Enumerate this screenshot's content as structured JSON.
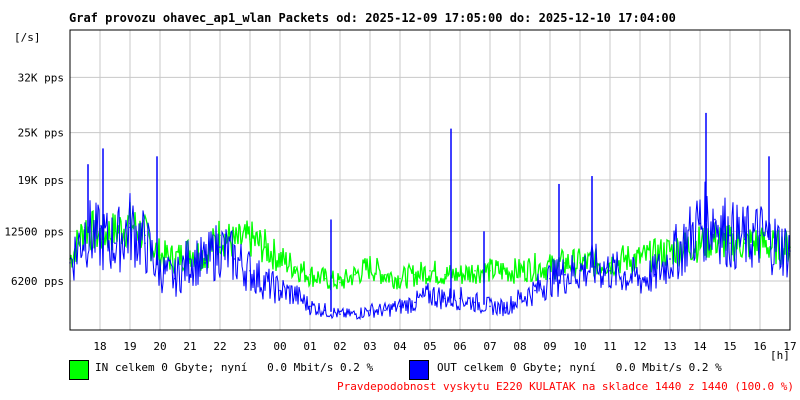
{
  "title": "Graf provozu ohavec_ap1_wlan Packets od: 2025-12-09 17:05:00 do: 2025-12-10 17:04:00",
  "chart_data": {
    "type": "line",
    "title": "Graf provozu ohavec_ap1_wlan Packets od: 2025-12-09 17:05:00 do: 2025-12-10 17:04:00",
    "ylabel": "[/s]",
    "xlabel": "[h]",
    "ylim": [
      0,
      38000
    ],
    "y_ticks": [
      {
        "value": 6200,
        "label": "6200 pps"
      },
      {
        "value": 12500,
        "label": "12500 pps"
      },
      {
        "value": 19000,
        "label": "19K pps"
      },
      {
        "value": 25000,
        "label": "25K pps"
      },
      {
        "value": 32000,
        "label": "32K pps"
      }
    ],
    "xlim": [
      17.0,
      41.0
    ],
    "x_ticks": [
      {
        "value": 18,
        "label": "18"
      },
      {
        "value": 19,
        "label": "19"
      },
      {
        "value": 20,
        "label": "20"
      },
      {
        "value": 21,
        "label": "21"
      },
      {
        "value": 22,
        "label": "22"
      },
      {
        "value": 23,
        "label": "23"
      },
      {
        "value": 24,
        "label": "00"
      },
      {
        "value": 25,
        "label": "01"
      },
      {
        "value": 26,
        "label": "02"
      },
      {
        "value": 27,
        "label": "03"
      },
      {
        "value": 28,
        "label": "04"
      },
      {
        "value": 29,
        "label": "05"
      },
      {
        "value": 30,
        "label": "06"
      },
      {
        "value": 31,
        "label": "07"
      },
      {
        "value": 32,
        "label": "08"
      },
      {
        "value": 33,
        "label": "09"
      },
      {
        "value": 34,
        "label": "10"
      },
      {
        "value": 35,
        "label": "11"
      },
      {
        "value": 36,
        "label": "12"
      },
      {
        "value": 37,
        "label": "13"
      },
      {
        "value": 38,
        "label": "14"
      },
      {
        "value": 39,
        "label": "15"
      },
      {
        "value": 40,
        "label": "16"
      },
      {
        "value": 41,
        "label": "17"
      }
    ],
    "grid": true,
    "series": [
      {
        "name": "IN",
        "color": "#00ff00",
        "x": [
          17.0,
          17.5,
          18.0,
          18.5,
          19.0,
          19.5,
          20.0,
          20.5,
          21.0,
          21.5,
          22.0,
          22.5,
          23.0,
          23.5,
          24.0,
          24.5,
          25.0,
          25.5,
          26.0,
          26.5,
          27.0,
          27.5,
          28.0,
          28.5,
          29.0,
          29.5,
          30.0,
          30.5,
          31.0,
          31.5,
          32.0,
          32.5,
          33.0,
          33.5,
          34.0,
          34.5,
          35.0,
          35.5,
          36.0,
          36.5,
          37.0,
          37.5,
          38.0,
          38.5,
          39.0,
          39.5,
          40.0,
          40.5,
          41.0
        ],
        "values": [
          9000,
          13000,
          12000,
          12500,
          13500,
          12000,
          9500,
          9000,
          10000,
          9500,
          12000,
          11000,
          11500,
          10500,
          9000,
          8000,
          7000,
          6500,
          6000,
          7000,
          8000,
          7000,
          6500,
          7000,
          7500,
          7000,
          7000,
          7500,
          7500,
          7500,
          7500,
          8000,
          8000,
          8500,
          8500,
          8500,
          8500,
          9000,
          9000,
          9500,
          10000,
          10500,
          11000,
          11500,
          11000,
          11000,
          11000,
          10500,
          10500
        ]
      },
      {
        "name": "OUT",
        "color": "#0000ff",
        "x": [
          17.0,
          17.5,
          18.0,
          18.5,
          19.0,
          19.5,
          20.0,
          20.5,
          21.0,
          21.5,
          22.0,
          22.5,
          23.0,
          23.5,
          24.0,
          24.5,
          25.0,
          25.5,
          26.0,
          26.5,
          27.0,
          27.5,
          28.0,
          28.5,
          29.0,
          29.5,
          30.0,
          30.5,
          31.0,
          31.5,
          32.0,
          32.5,
          33.0,
          33.5,
          34.0,
          34.5,
          35.0,
          35.5,
          36.0,
          36.5,
          37.0,
          37.5,
          38.0,
          38.5,
          39.0,
          39.5,
          40.0,
          40.5,
          41.0
        ],
        "values": [
          8500,
          12500,
          11500,
          11000,
          13000,
          11000,
          7500,
          6500,
          9000,
          8500,
          10500,
          9000,
          7500,
          6000,
          5000,
          4500,
          3000,
          2500,
          2000,
          2000,
          2500,
          2500,
          3000,
          3500,
          4500,
          4000,
          4000,
          3500,
          3000,
          2800,
          4000,
          5000,
          6500,
          7000,
          7500,
          8000,
          7500,
          7000,
          6500,
          7000,
          9000,
          11000,
          13500,
          14000,
          12000,
          11500,
          12000,
          11000,
          10000
        ],
        "spikes": [
          {
            "x": 17.6,
            "value": 21000
          },
          {
            "x": 18.1,
            "value": 23000
          },
          {
            "x": 19.9,
            "value": 22000
          },
          {
            "x": 25.7,
            "value": 14000
          },
          {
            "x": 29.7,
            "value": 25500
          },
          {
            "x": 30.8,
            "value": 12500
          },
          {
            "x": 33.3,
            "value": 18500
          },
          {
            "x": 34.4,
            "value": 19500
          },
          {
            "x": 38.2,
            "value": 27500
          },
          {
            "x": 40.3,
            "value": 22000
          }
        ]
      }
    ],
    "legend": [
      {
        "name": "IN",
        "color": "#00ff00",
        "text": "IN celkem 0 Gbyte; nyní   0.0 Mbit/s 0.2 %"
      },
      {
        "name": "OUT",
        "color": "#0000ff",
        "text": "OUT celkem 0 Gbyte; nyní   0.0 Mbit/s 0.2 %"
      }
    ],
    "legend_position": "bottom"
  },
  "footer_note": "Pravdepodobnost vyskytu E220 KULATAK na skladce 1440 z 1440 (100.0 %)",
  "footer_color": "#ff0000"
}
